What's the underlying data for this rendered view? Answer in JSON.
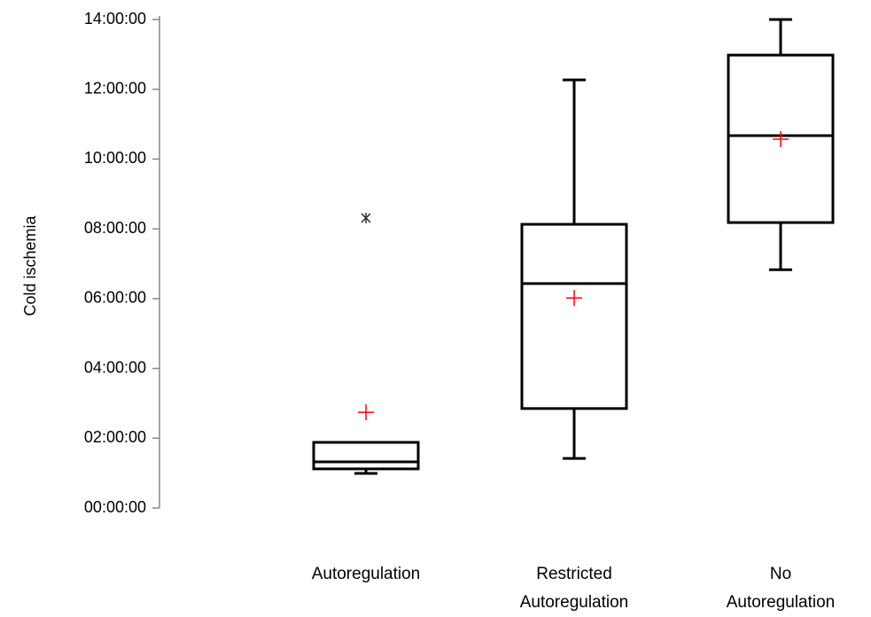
{
  "chart_data": {
    "type": "box",
    "y_label": "Cold ischemia",
    "categories": [
      "Autoregulation",
      "Restricted\nAutoregulation",
      "No\nAutoregulation"
    ],
    "boxes": [
      {
        "min": 0.99,
        "q1": 1.12,
        "median": 1.32,
        "q3": 1.88,
        "max": 1.88,
        "mean": 2.74,
        "outliers": [
          8.31
        ]
      },
      {
        "min": 1.42,
        "q1": 2.85,
        "median": 6.43,
        "q3": 8.13,
        "max": 12.27,
        "mean": 6.02,
        "outliers": []
      },
      {
        "min": 6.83,
        "q1": 8.18,
        "median": 10.67,
        "q3": 12.98,
        "max": 14.0,
        "mean": 10.57,
        "outliers": []
      }
    ],
    "box_color": "#000000",
    "mean_color": "#ff0000",
    "outlier_color": "#333333",
    "ylim": [
      0,
      14
    ],
    "yticks": [
      {
        "value": 0,
        "label": "00:00:00"
      },
      {
        "value": 2,
        "label": "02:00:00"
      },
      {
        "value": 4,
        "label": "04:00:00"
      },
      {
        "value": 6,
        "label": "06:00:00"
      },
      {
        "value": 8,
        "label": "08:00:00"
      },
      {
        "value": 10,
        "label": "10:00:00"
      },
      {
        "value": 12,
        "label": "12:00:00"
      },
      {
        "value": 14,
        "label": "14:00:00"
      }
    ]
  }
}
